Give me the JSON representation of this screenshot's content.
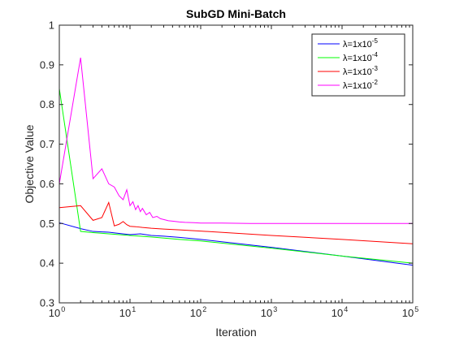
{
  "chart_data": {
    "type": "line",
    "title": "SubGD Mini-Batch",
    "xlabel": "Iteration",
    "ylabel": "Objective Value",
    "xscale": "log",
    "xlim": [
      1,
      100000
    ],
    "ylim": [
      0.3,
      1.0
    ],
    "grid": false,
    "legend_position": "top-right",
    "x_ticks": [
      {
        "value": 1,
        "base": "10",
        "exp": "0"
      },
      {
        "value": 10,
        "base": "10",
        "exp": "1"
      },
      {
        "value": 100,
        "base": "10",
        "exp": "2"
      },
      {
        "value": 1000,
        "base": "10",
        "exp": "3"
      },
      {
        "value": 10000,
        "base": "10",
        "exp": "4"
      },
      {
        "value": 100000,
        "base": "10",
        "exp": "5"
      }
    ],
    "y_ticks": [
      {
        "value": 0.3,
        "label": "0.3"
      },
      {
        "value": 0.4,
        "label": "0.4"
      },
      {
        "value": 0.5,
        "label": "0.5"
      },
      {
        "value": 0.6,
        "label": "0.6"
      },
      {
        "value": 0.7,
        "label": "0.7"
      },
      {
        "value": 0.8,
        "label": "0.8"
      },
      {
        "value": 0.9,
        "label": "0.9"
      },
      {
        "value": 1.0,
        "label": "1"
      }
    ],
    "series": [
      {
        "name": "λ=1x10⁻⁵",
        "legend": {
          "prefix": "λ=1x10",
          "exp": "-5"
        },
        "color": "#0000ff",
        "x": [
          1,
          2,
          3,
          5,
          7,
          10,
          14,
          20,
          30,
          50,
          100,
          1000,
          10000,
          100000
        ],
        "y": [
          0.502,
          0.487,
          0.48,
          0.478,
          0.475,
          0.472,
          0.474,
          0.47,
          0.468,
          0.465,
          0.46,
          0.44,
          0.418,
          0.395
        ]
      },
      {
        "name": "λ=1x10⁻⁴",
        "legend": {
          "prefix": "λ=1x10",
          "exp": "-4"
        },
        "color": "#00ff00",
        "x": [
          1,
          2,
          3,
          5,
          10,
          20,
          50,
          100,
          1000,
          10000,
          100000
        ],
        "y": [
          0.84,
          0.48,
          0.477,
          0.474,
          0.47,
          0.466,
          0.46,
          0.456,
          0.438,
          0.418,
          0.4
        ]
      },
      {
        "name": "λ=1x10⁻³",
        "legend": {
          "prefix": "λ=1x10",
          "exp": "-3"
        },
        "color": "#ff0000",
        "x": [
          1,
          2,
          3,
          4,
          5,
          6,
          7,
          8,
          9,
          10,
          12,
          15,
          20,
          30,
          50,
          100,
          1000,
          10000,
          100000
        ],
        "y": [
          0.54,
          0.545,
          0.508,
          0.515,
          0.553,
          0.494,
          0.498,
          0.505,
          0.497,
          0.493,
          0.492,
          0.49,
          0.488,
          0.486,
          0.484,
          0.481,
          0.47,
          0.46,
          0.449
        ]
      },
      {
        "name": "λ=1x10⁻²",
        "legend": {
          "prefix": "λ=1x10",
          "exp": "-2"
        },
        "color": "#ff00ff",
        "x": [
          1,
          2,
          3,
          4,
          5,
          6,
          7,
          8,
          9,
          10,
          11,
          12,
          13,
          14,
          15,
          17,
          19,
          21,
          24,
          27,
          30,
          35,
          40,
          50,
          60,
          80,
          100,
          200,
          500,
          1000,
          10000,
          100000
        ],
        "y": [
          0.6,
          0.918,
          0.613,
          0.638,
          0.6,
          0.592,
          0.57,
          0.56,
          0.585,
          0.545,
          0.555,
          0.535,
          0.545,
          0.53,
          0.538,
          0.522,
          0.528,
          0.515,
          0.518,
          0.512,
          0.51,
          0.507,
          0.506,
          0.504,
          0.503,
          0.502,
          0.501,
          0.501,
          0.5,
          0.5,
          0.5,
          0.5
        ]
      }
    ]
  }
}
